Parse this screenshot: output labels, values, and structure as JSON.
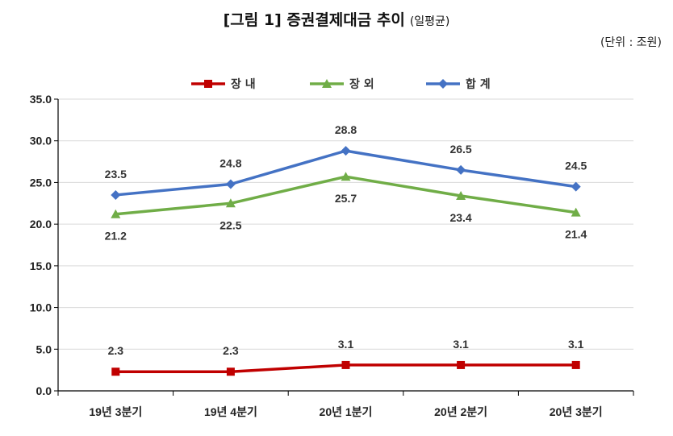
{
  "header": {
    "title": "[그림 1] 증권결제대금 추이",
    "subtitle": "(일평균)",
    "unit": "(단위 : 조원)"
  },
  "chart_data": {
    "type": "line",
    "categories": [
      "19년 3분기",
      "19년 4분기",
      "20년 1분기",
      "20년 2분기",
      "20년 3분기"
    ],
    "series": [
      {
        "name": "장 내",
        "values": [
          2.3,
          2.3,
          3.1,
          3.1,
          3.1
        ],
        "color": "#c00000",
        "marker": "square",
        "labels": [
          "2.3",
          "2.3",
          "3.1",
          "3.1",
          "3.1"
        ],
        "label_pos": "above"
      },
      {
        "name": "장 외",
        "values": [
          21.2,
          22.5,
          25.7,
          23.4,
          21.4
        ],
        "color": "#70ad47",
        "marker": "triangle",
        "labels": [
          "21.2",
          "22.5",
          "25.7",
          "23.4",
          "21.4"
        ],
        "label_pos": "below"
      },
      {
        "name": "합 계",
        "values": [
          23.5,
          24.8,
          28.8,
          26.5,
          24.5
        ],
        "color": "#4472c4",
        "marker": "diamond",
        "labels": [
          "23.5",
          "24.8",
          "28.8",
          "26.5",
          "24.5"
        ],
        "label_pos": "above"
      }
    ],
    "ylim": [
      0,
      35
    ],
    "yticks": [
      "0.0",
      "5.0",
      "10.0",
      "15.0",
      "20.0",
      "25.0",
      "30.0",
      "35.0"
    ],
    "grid": true,
    "legend": "top-center"
  }
}
